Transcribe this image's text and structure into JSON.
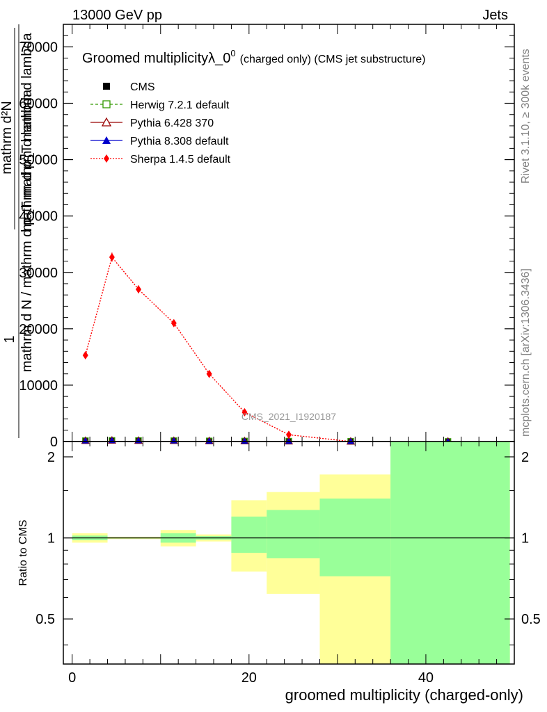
{
  "header": {
    "left": "13000 GeV pp",
    "right": "Jets"
  },
  "side_labels": {
    "rivet": "Rivet 3.1.10, ≥ 300k events",
    "mcplots": "mcplots.cern.ch [arXiv:1306.3436]"
  },
  "watermark": "CMS_2021_I1920187",
  "colors": {
    "cms": "#000000",
    "herwig": "#339900",
    "pythia6": "#990000",
    "pythia8": "#0000cc",
    "sherpa": "#ff0000",
    "band_outer": "#ffff99",
    "band_inner": "#99ff99"
  },
  "chart_data": [
    {
      "type": "line",
      "title_main": "Groomed multiplicityλ_0",
      "title_sup": "0",
      "title_detail": "(charged only) (CMS jet substructure)",
      "ylabel_num": "1",
      "ylabel_den": "mathrm d N / mathrm d p_T mathrm d lambda",
      "ylabel_side_num": "mathrm d²N",
      "ylabel_side_den": "mathrm d p_T mathrm d lambda",
      "xlim": [
        -1,
        50
      ],
      "ylim": [
        0,
        74000
      ],
      "yticks": [
        0,
        10000,
        20000,
        30000,
        40000,
        50000,
        60000,
        70000
      ],
      "ytick_labels": [
        "0",
        "10000",
        "20000",
        "30000",
        "40000",
        "50000",
        "60000",
        "70000"
      ],
      "legend_position": "top-left",
      "legend": [
        {
          "key": "cms",
          "label": "CMS"
        },
        {
          "key": "herwig",
          "label": "Herwig 7.2.1 default"
        },
        {
          "key": "pythia6",
          "label": "Pythia 6.428 370"
        },
        {
          "key": "pythia8",
          "label": "Pythia 8.308 default"
        },
        {
          "key": "sherpa",
          "label": "Sherpa 1.4.5 default"
        }
      ],
      "series": [
        {
          "name": "CMS",
          "key": "cms",
          "x": [
            1.5,
            4.5,
            7.5,
            11.5,
            15.5,
            19.5,
            24.5,
            31.5,
            42.5
          ],
          "values": [
            150,
            200,
            180,
            150,
            110,
            90,
            70,
            40,
            20
          ]
        },
        {
          "name": "Herwig 7.2.1 default",
          "key": "herwig",
          "x": [
            1.5,
            4.5,
            7.5,
            11.5,
            15.5,
            19.5,
            24.5,
            31.5,
            42.5
          ],
          "values": [
            150,
            200,
            180,
            150,
            110,
            90,
            70,
            40,
            20
          ]
        },
        {
          "name": "Pythia 6.428 370",
          "key": "pythia6",
          "x": [
            1.5,
            4.5,
            7.5,
            11.5,
            15.5,
            19.5,
            24.5,
            31.5,
            42.5
          ],
          "values": [
            150,
            200,
            180,
            150,
            110,
            90,
            70,
            40,
            20
          ]
        },
        {
          "name": "Pythia 8.308 default",
          "key": "pythia8",
          "x": [
            1.5,
            4.5,
            7.5,
            11.5,
            15.5,
            19.5,
            24.5,
            31.5,
            42.5
          ],
          "values": [
            150,
            200,
            180,
            150,
            110,
            90,
            70,
            40,
            20
          ]
        },
        {
          "name": "Sherpa 1.4.5 default",
          "key": "sherpa",
          "x": [
            1.5,
            4.5,
            7.5,
            11.5,
            15.5,
            19.5,
            24.5,
            31.5
          ],
          "values": [
            15300,
            32700,
            27000,
            21000,
            12000,
            5200,
            1200,
            0
          ],
          "errors": [
            600,
            800,
            700,
            600,
            300,
            200,
            100,
            0
          ]
        }
      ]
    },
    {
      "type": "area",
      "ylabel": "Ratio to CMS",
      "xlabel": "groomed multiplicity (charged-only)",
      "xlim": [
        -1,
        50
      ],
      "ylim": [
        0.34,
        2.28
      ],
      "yticks": [
        0.5,
        1,
        2
      ],
      "ytick_labels": [
        "0.5",
        "1",
        "2"
      ],
      "xticks": [
        0,
        20,
        40
      ],
      "xtick_labels": [
        "0",
        "20",
        "40"
      ],
      "reference": 1,
      "bins": [
        {
          "lo": 0,
          "hi": 4,
          "outer": [
            0.96,
            1.04
          ],
          "inner": [
            0.98,
            1.02
          ]
        },
        {
          "lo": 4,
          "hi": 10,
          "outer": [
            0.99,
            1.01
          ],
          "inner": [
            0.995,
            1.005
          ]
        },
        {
          "lo": 10,
          "hi": 14,
          "outer": [
            0.93,
            1.07
          ],
          "inner": [
            0.96,
            1.04
          ]
        },
        {
          "lo": 14,
          "hi": 18,
          "outer": [
            0.97,
            1.03
          ],
          "inner": [
            0.985,
            1.015
          ]
        },
        {
          "lo": 18,
          "hi": 22,
          "outer": [
            0.75,
            1.38
          ],
          "inner": [
            0.88,
            1.2
          ]
        },
        {
          "lo": 22,
          "hi": 28,
          "outer": [
            0.62,
            1.48
          ],
          "inner": [
            0.84,
            1.27
          ]
        },
        {
          "lo": 28,
          "hi": 36,
          "outer": [
            0.34,
            1.72
          ],
          "inner": [
            0.72,
            1.4
          ]
        },
        {
          "lo": 36,
          "hi": 49.5,
          "outer": [
            0.34,
            2.28
          ],
          "inner": [
            0.34,
            2.28
          ]
        }
      ]
    }
  ]
}
